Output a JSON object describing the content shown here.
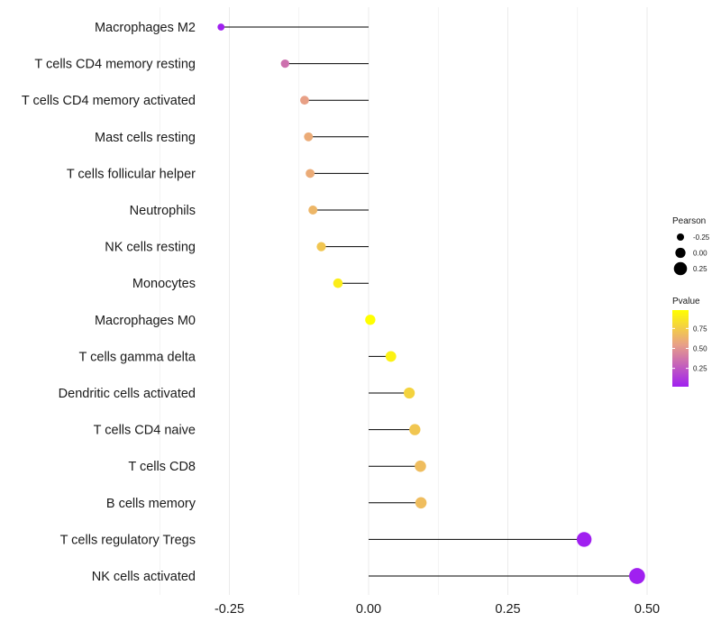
{
  "chart_data": {
    "type": "lollipop",
    "title": "",
    "xlabel": "",
    "ylabel": "",
    "xlim": [
      -0.28,
      0.505
    ],
    "x_ticks": [
      -0.25,
      0.0,
      0.25,
      0.5
    ],
    "x_tick_labels": [
      "-0.25",
      "0.00",
      "0.25",
      "0.50"
    ],
    "categories": [
      "Macrophages M2",
      "T cells CD4 memory resting",
      "T cells CD4 memory activated",
      "Mast cells resting",
      "T cells follicular helper",
      "Neutrophils",
      "NK cells resting",
      "Monocytes",
      "Macrophages M0",
      "T cells gamma delta",
      "Dendritic cells activated",
      "T cells CD4 naive",
      "T cells CD8",
      "B cells memory",
      "T cells regulatory  Tregs ",
      "NK cells activated"
    ],
    "pearson": [
      -0.265,
      -0.15,
      -0.115,
      -0.108,
      -0.105,
      -0.1,
      -0.085,
      -0.055,
      0.003,
      0.04,
      0.073,
      0.083,
      0.093,
      0.094,
      0.387,
      0.482
    ],
    "pvalue": [
      0.02,
      0.35,
      0.55,
      0.6,
      0.6,
      0.65,
      0.72,
      0.9,
      0.98,
      0.92,
      0.78,
      0.72,
      0.68,
      0.68,
      0.02,
      0.02
    ],
    "legend": {
      "size_title": "Pearson",
      "size_values": [
        -0.25,
        0.0,
        0.25
      ],
      "size_labels": [
        "-0.25",
        "0.00",
        "0.25"
      ],
      "color_title": "Pvalue",
      "color_ticks": [
        0.25,
        0.5,
        0.75
      ],
      "color_labels": [
        "0.25",
        "0.50",
        "0.75"
      ],
      "color_range": [
        0.02,
        0.98
      ],
      "placement": "right"
    },
    "colors": {
      "low": "#a020f0",
      "mid": "#e8a087",
      "high": "#ffff00",
      "segment": "#000000",
      "grid": "#ebebeb"
    }
  }
}
